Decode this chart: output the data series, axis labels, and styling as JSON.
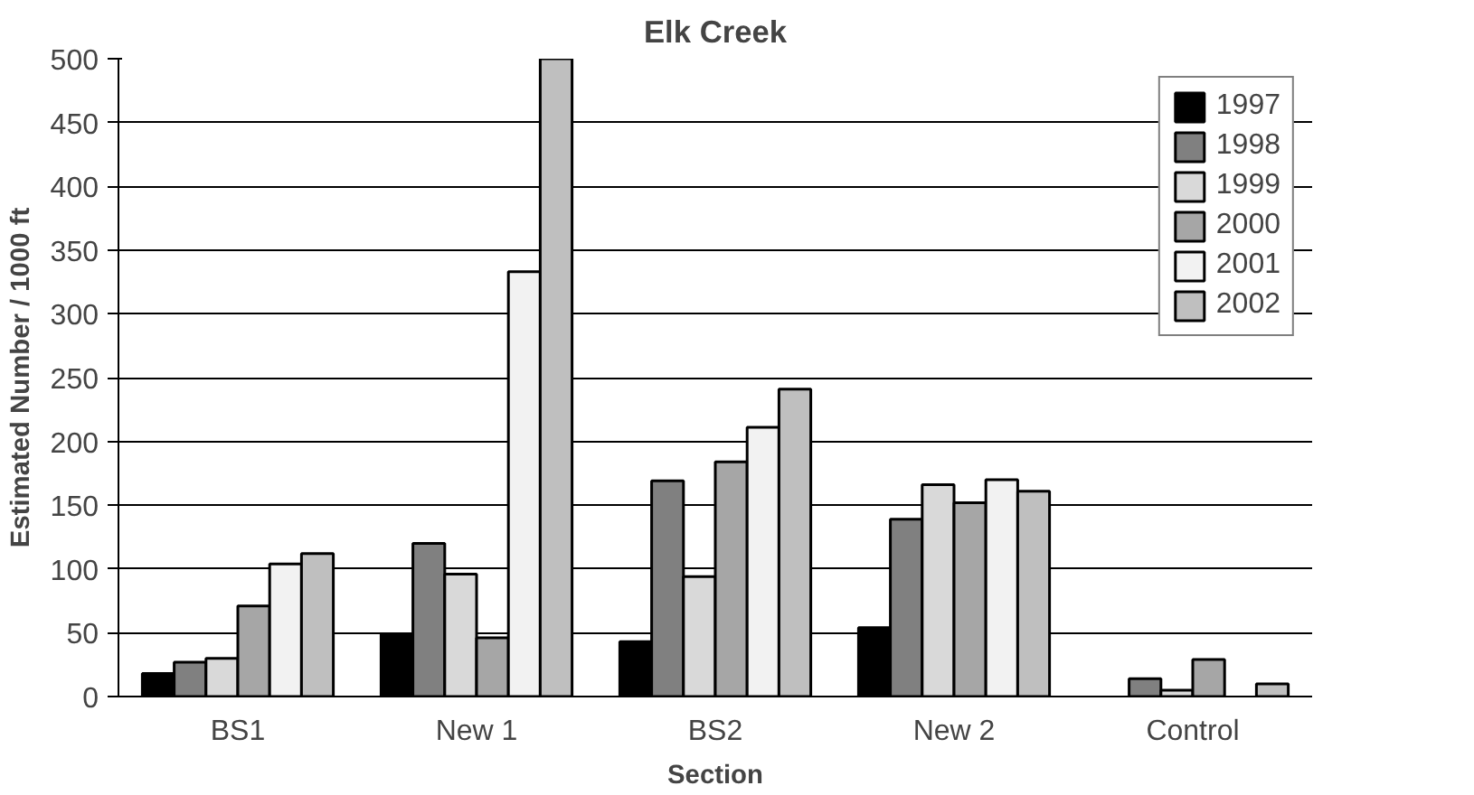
{
  "chart_data": {
    "type": "bar",
    "title": "Elk Creek",
    "xlabel": "Section",
    "ylabel": "Estimated Number / 1000 ft",
    "categories": [
      "BS1",
      "New 1",
      "BS2",
      "New 2",
      "Control"
    ],
    "series": [
      {
        "name": "1997",
        "color": "#000000",
        "values": [
          18,
          49,
          43,
          54,
          null
        ]
      },
      {
        "name": "1998",
        "color": "#808080",
        "values": [
          27,
          120,
          169,
          139,
          14
        ]
      },
      {
        "name": "1999",
        "color": "#d9d9d9",
        "values": [
          30,
          96,
          94,
          166,
          5
        ]
      },
      {
        "name": "2000",
        "color": "#a6a6a6",
        "values": [
          71,
          46,
          184,
          152,
          29
        ]
      },
      {
        "name": "2001",
        "color": "#f2f2f2",
        "values": [
          104,
          333,
          211,
          170,
          null
        ]
      },
      {
        "name": "2002",
        "color": "#bfbfbf",
        "values": [
          112,
          500,
          241,
          161,
          10
        ]
      }
    ],
    "ylim": [
      0,
      500
    ],
    "yticks": [
      0,
      50,
      100,
      150,
      200,
      250,
      300,
      350,
      400,
      450,
      500
    ],
    "grid": "y",
    "legend": "top right"
  }
}
